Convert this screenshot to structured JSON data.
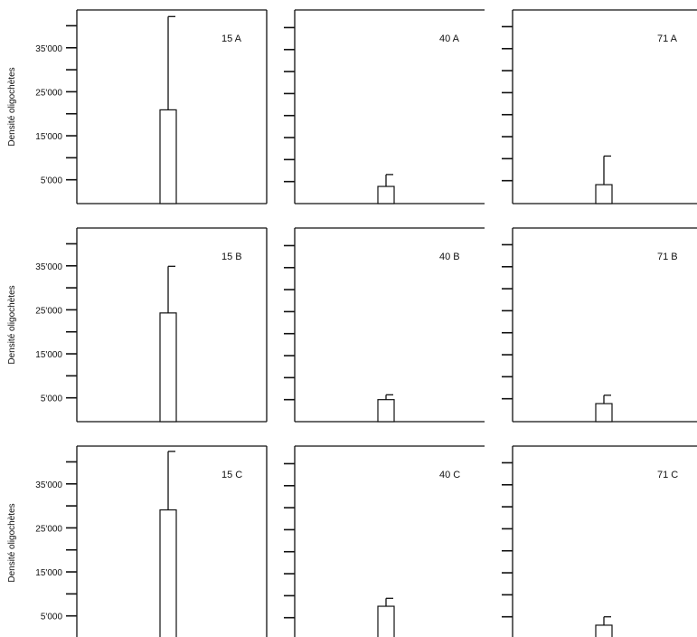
{
  "chart_data": {
    "type": "bar",
    "layout": "3x3 small multiples",
    "ylabel": "Densité oligochètes",
    "ylim": [
      0,
      44000
    ],
    "yticks": [
      0,
      5000,
      10000,
      15000,
      20000,
      25000,
      30000,
      35000,
      40000
    ],
    "ytick_labels": [
      "5'000",
      "15'000",
      "25'000",
      "35'000"
    ],
    "ytick_label_values": [
      5000,
      15000,
      25000,
      35000
    ],
    "colors": {
      "bar_fill": "#ffffff",
      "stroke": "#111111"
    },
    "rows": [
      {
        "panels": [
          {
            "label": "15 A",
            "value": 21300,
            "error": 21200
          },
          {
            "label": "40 A",
            "value": 3900,
            "error": 2700
          },
          {
            "label": "71 A",
            "value": 4300,
            "error": 6500
          }
        ]
      },
      {
        "panels": [
          {
            "label": "15 B",
            "value": 24700,
            "error": 10600
          },
          {
            "label": "40 B",
            "value": 5000,
            "error": 1100
          },
          {
            "label": "71 B",
            "value": 4100,
            "error": 1900
          }
        ]
      },
      {
        "panels": [
          {
            "label": "15 C",
            "value": 29500,
            "error": 13300
          },
          {
            "label": "40 C",
            "value": 7600,
            "error": 1800
          },
          {
            "label": "71 C",
            "value": 3300,
            "error": 1900
          }
        ]
      }
    ]
  }
}
